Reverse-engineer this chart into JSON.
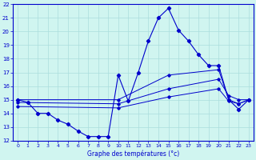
{
  "xlabel": "Graphe des températures (°c)",
  "background_color": "#d0f5f0",
  "grid_color": "#aadddd",
  "line_color": "#0000cc",
  "xlim": [
    -0.5,
    23.5
  ],
  "ylim": [
    12,
    22
  ],
  "yticks": [
    12,
    13,
    14,
    15,
    16,
    17,
    18,
    19,
    20,
    21,
    22
  ],
  "xticks": [
    0,
    1,
    2,
    3,
    4,
    5,
    6,
    7,
    8,
    9,
    10,
    11,
    12,
    13,
    14,
    15,
    16,
    17,
    18,
    19,
    20,
    21,
    22,
    23
  ],
  "series_main": {
    "x": [
      0,
      1,
      2,
      3,
      4,
      5,
      6,
      7,
      8,
      9,
      10,
      11,
      12,
      13,
      14,
      15,
      16,
      17,
      18,
      19,
      20,
      21,
      22,
      23
    ],
    "y": [
      15.0,
      14.8,
      14.0,
      14.0,
      13.5,
      13.2,
      12.7,
      12.3,
      12.3,
      12.3,
      16.8,
      14.9,
      17.0,
      19.3,
      21.0,
      21.7,
      20.1,
      19.3,
      18.3,
      17.5,
      17.5,
      15.0,
      14.3,
      15.0
    ]
  },
  "series_lines": [
    {
      "x": [
        0,
        10,
        15,
        20,
        21,
        22,
        23
      ],
      "y": [
        15.0,
        15.0,
        16.8,
        17.2,
        15.0,
        14.7,
        15.0
      ]
    },
    {
      "x": [
        0,
        10,
        15,
        20,
        21,
        22,
        23
      ],
      "y": [
        14.8,
        14.7,
        15.8,
        16.5,
        15.3,
        15.0,
        15.0
      ]
    },
    {
      "x": [
        0,
        10,
        15,
        20,
        21,
        22,
        23
      ],
      "y": [
        14.5,
        14.4,
        15.2,
        15.8,
        14.9,
        14.7,
        15.0
      ]
    }
  ]
}
